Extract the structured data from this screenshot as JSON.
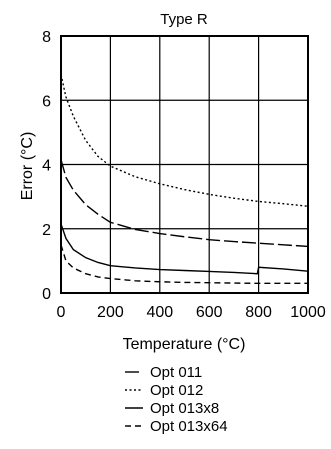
{
  "chart_data": {
    "type": "line",
    "title": "Type R",
    "xlabel": "Temperature (°C)",
    "ylabel": "Error (°C)",
    "xlim": [
      0,
      1000
    ],
    "ylim": [
      0,
      8
    ],
    "x_ticks": [
      0,
      200,
      400,
      600,
      800,
      1000
    ],
    "y_ticks": [
      0,
      2,
      4,
      6,
      8
    ],
    "x_tick_labels": [
      "0",
      "200",
      "400",
      "600",
      "800",
      "1000"
    ],
    "y_tick_labels": [
      "0",
      "2",
      "4",
      "6",
      "8"
    ],
    "grid": true,
    "legend_position": "bottom",
    "series": [
      {
        "name": "Opt 011",
        "line_style": "long-dash",
        "color": "#000000",
        "x": [
          0,
          20,
          50,
          100,
          150,
          200,
          300,
          400,
          500,
          600,
          700,
          800,
          900,
          1000
        ],
        "y": [
          4.15,
          3.6,
          3.2,
          2.75,
          2.45,
          2.2,
          1.98,
          1.85,
          1.75,
          1.66,
          1.6,
          1.55,
          1.5,
          1.45
        ]
      },
      {
        "name": "Opt 012",
        "line_style": "dotted",
        "color": "#000000",
        "x": [
          0,
          20,
          50,
          100,
          150,
          200,
          300,
          400,
          500,
          600,
          700,
          800,
          900,
          1000
        ],
        "y": [
          6.8,
          6.1,
          5.5,
          4.75,
          4.25,
          3.95,
          3.62,
          3.4,
          3.22,
          3.07,
          2.95,
          2.85,
          2.78,
          2.7
        ]
      },
      {
        "name": "Opt 013x8",
        "line_style": "solid",
        "color": "#000000",
        "x": [
          0,
          20,
          50,
          100,
          150,
          200,
          300,
          400,
          500,
          600,
          700,
          795,
          800,
          900,
          1000
        ],
        "y": [
          2.15,
          1.7,
          1.35,
          1.1,
          0.95,
          0.85,
          0.78,
          0.73,
          0.7,
          0.67,
          0.64,
          0.6,
          0.8,
          0.75,
          0.68
        ]
      },
      {
        "name": "Opt 013x64",
        "line_style": "short-dash",
        "color": "#000000",
        "x": [
          0,
          20,
          50,
          100,
          150,
          200,
          300,
          400,
          500,
          600,
          700,
          800,
          900,
          1000
        ],
        "y": [
          1.5,
          1.0,
          0.78,
          0.6,
          0.5,
          0.45,
          0.38,
          0.35,
          0.33,
          0.32,
          0.31,
          0.3,
          0.3,
          0.3
        ]
      }
    ]
  }
}
